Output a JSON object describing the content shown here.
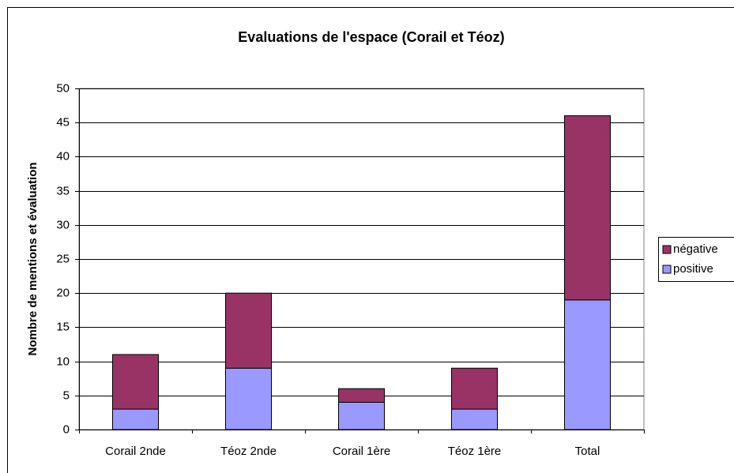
{
  "chart_data": {
    "type": "stacked-bar",
    "title": "Evaluations de l'espace (Corail et Téoz)",
    "y_label": "Nombre de mentions et évaluation",
    "categories": [
      "Corail 2nde",
      "Téoz 2nde",
      "Corail 1ère",
      "Téoz 1ère",
      "Total"
    ],
    "series": [
      {
        "name": "positive",
        "color": "#9999ff",
        "values": [
          3,
          9,
          4,
          3,
          19
        ]
      },
      {
        "name": "négative",
        "color": "#993366",
        "values": [
          8,
          11,
          2,
          6,
          27
        ]
      }
    ],
    "ylim": [
      0,
      50
    ],
    "yticks": [
      0,
      5,
      10,
      15,
      20,
      25,
      30,
      35,
      40,
      45,
      50
    ],
    "grid": true,
    "legend": "right"
  }
}
